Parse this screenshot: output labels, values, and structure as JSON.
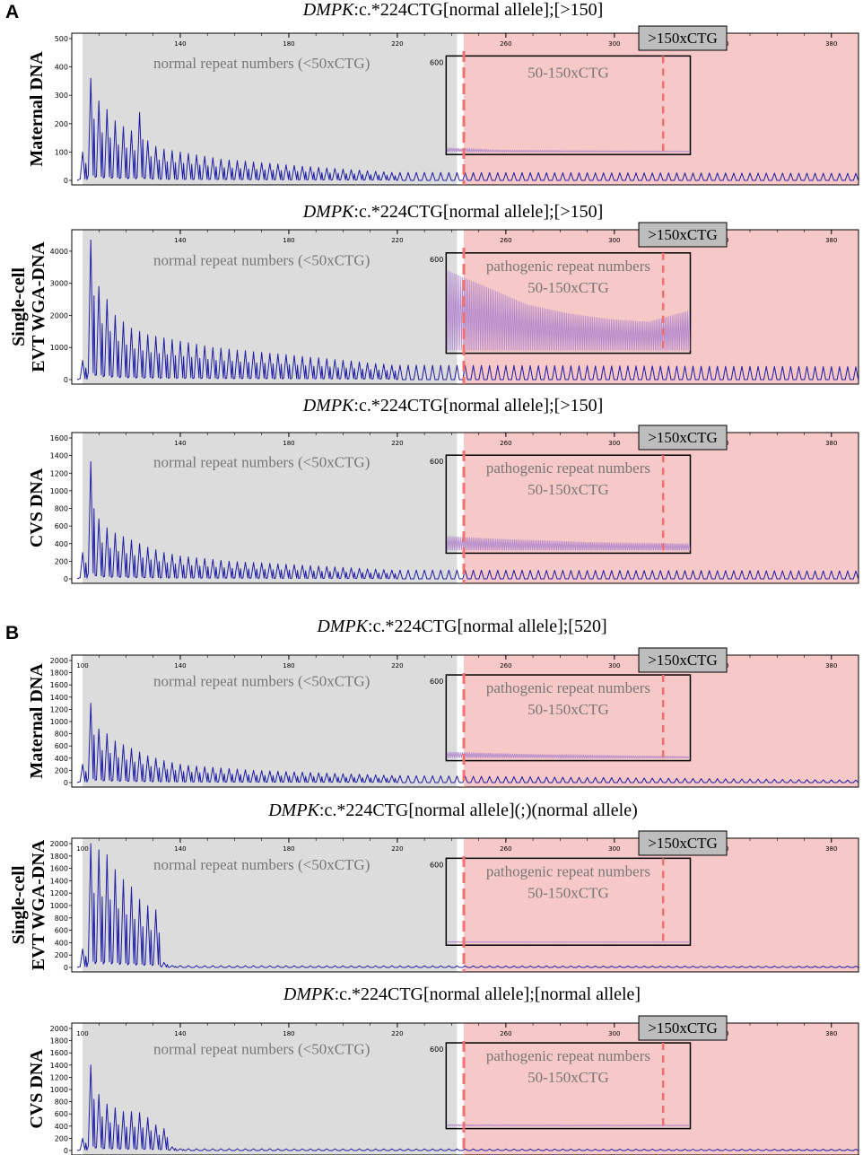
{
  "figure": {
    "section_labels": [
      "A",
      "B"
    ],
    "colors": {
      "trace": "#1c1ca6",
      "normal_zone": "#dcdcdc",
      "expanded_zone": "#f7c8c8",
      "dashed_line": "#f07070",
      "inset_trace": "#b38acd",
      "badge_bg": "#bdbdbd"
    },
    "region_labels": {
      "normal": "normal repeat numbers (<50xCTG)",
      "pathogenic_title": "pathogenic repeat numbers",
      "pathogenic_range": "50-150xCTG",
      "expanded": ">150xCTG",
      "inset_ymax": "600"
    },
    "x_ticks": [
      "140",
      "180",
      "220",
      "260",
      "300",
      "340",
      "380"
    ],
    "x_tick_values": [
      140,
      180,
      220,
      260,
      300,
      340,
      380
    ],
    "x_axis_start_label": "100"
  },
  "chart_data": [
    {
      "type": "line",
      "section": "A",
      "sample": "Maternal DNA",
      "title_gene": "DMPK",
      "title_rest": ":c.*224CTG[normal allele];[>150]",
      "y_ticks": [
        "0",
        "100",
        "200",
        "300",
        "400",
        "500"
      ],
      "ylim": [
        0,
        500
      ],
      "xlim": [
        100,
        390
      ],
      "peak_heights": [
        100,
        360,
        280,
        250,
        210,
        190,
        175,
        240,
        140,
        120,
        110,
        105,
        100,
        95,
        90,
        85,
        80,
        75,
        72,
        70,
        68,
        65,
        62,
        60,
        58,
        55,
        53,
        50,
        48,
        46,
        44,
        42,
        40,
        38,
        36,
        34,
        32,
        30,
        28
      ],
      "expanded_level": 25,
      "show_pathogenic_title": false,
      "inset_profile": [
        150,
        60,
        50,
        40,
        35,
        30
      ]
    },
    {
      "type": "line",
      "section": "A",
      "sample": "Single-cell EVT WGA-DNA",
      "title_gene": "DMPK",
      "title_rest": ":c.*224CTG[normal allele];[>150]",
      "y_ticks": [
        "0",
        "1000",
        "2000",
        "3000",
        "4000"
      ],
      "ylim": [
        0,
        4500
      ],
      "xlim": [
        100,
        390
      ],
      "peak_heights": [
        600,
        4350,
        2900,
        2500,
        2000,
        1800,
        1600,
        1500,
        1400,
        1350,
        1300,
        1250,
        1200,
        1150,
        1100,
        1050,
        1000,
        980,
        950,
        920,
        900,
        870,
        850,
        820,
        800,
        780,
        750,
        720,
        700,
        680,
        650,
        620,
        600,
        580,
        550,
        520,
        500,
        480,
        450
      ],
      "expanded_level": 400,
      "show_pathogenic_title": true,
      "inset_profile": [
        2800,
        2200,
        1600,
        1300,
        1100,
        1000,
        1400
      ]
    },
    {
      "type": "line",
      "section": "A",
      "sample": "CVS DNA",
      "title_gene": "DMPK",
      "title_rest": ":c.*224CTG[normal allele];[>150]",
      "y_ticks": [
        "0",
        "200",
        "400",
        "600",
        "800",
        "1000",
        "1200",
        "1400",
        "1600"
      ],
      "ylim": [
        0,
        1600
      ],
      "xlim": [
        100,
        390
      ],
      "peak_heights": [
        300,
        1330,
        680,
        580,
        520,
        480,
        440,
        400,
        360,
        330,
        300,
        280,
        260,
        250,
        240,
        230,
        220,
        210,
        200,
        195,
        190,
        185,
        180,
        175,
        170,
        165,
        160,
        155,
        150,
        145,
        140,
        135,
        130,
        125,
        120,
        115,
        110,
        105,
        100
      ],
      "expanded_level": 90,
      "show_pathogenic_title": true,
      "inset_profile": [
        520,
        420,
        360,
        300,
        270,
        250
      ]
    },
    {
      "type": "line",
      "section": "B",
      "sample": "Maternal DNA",
      "title_gene": "DMPK",
      "title_rest": ":c.*224CTG[normal allele];[520]",
      "y_ticks": [
        "0",
        "200",
        "400",
        "600",
        "800",
        "1000",
        "1200",
        "1400",
        "1600",
        "1800",
        "2000"
      ],
      "ylim": [
        0,
        2000
      ],
      "xlim": [
        100,
        390
      ],
      "peak_heights": [
        300,
        1300,
        880,
        800,
        680,
        620,
        560,
        500,
        440,
        400,
        360,
        330,
        300,
        280,
        270,
        260,
        250,
        240,
        230,
        220,
        210,
        200,
        195,
        190,
        185,
        180,
        175,
        170,
        165,
        160,
        155,
        150,
        145,
        140,
        135,
        130,
        125,
        120,
        115
      ],
      "expanded_level": 40,
      "show_pathogenic_title": true,
      "inset_profile": [
        260,
        200,
        150,
        110,
        80,
        60
      ]
    },
    {
      "type": "line",
      "section": "B",
      "sample": "Single-cell EVT WGA-DNA",
      "title_gene": "DMPK",
      "title_rest": ":c.*224CTG[normal allele](;)(normal allele)",
      "y_ticks": [
        "0",
        "200",
        "400",
        "600",
        "800",
        "1000",
        "1200",
        "1400",
        "1600",
        "1800",
        "2000"
      ],
      "ylim": [
        0,
        2000
      ],
      "xlim": [
        100,
        390
      ],
      "peak_heights": [
        300,
        2000,
        1900,
        1820,
        1580,
        1420,
        1300,
        1100,
        1000,
        930,
        80,
        30
      ],
      "expanded_level": 20,
      "show_pathogenic_title": true,
      "inset_profile": [
        40,
        35,
        30,
        30,
        30,
        30
      ]
    },
    {
      "type": "line",
      "section": "B",
      "sample": "CVS DNA",
      "title_gene": "DMPK",
      "title_rest": ":c.*224CTG[normal allele];[normal allele]",
      "y_ticks": [
        "0",
        "200",
        "400",
        "600",
        "800",
        "1000",
        "1200",
        "1400",
        "1600",
        "1800",
        "2000"
      ],
      "ylim": [
        0,
        2000
      ],
      "xlim": [
        100,
        390
      ],
      "peak_heights": [
        200,
        1400,
        920,
        760,
        700,
        640,
        640,
        620,
        540,
        420,
        360,
        60,
        30
      ],
      "expanded_level": 20,
      "show_pathogenic_title": true,
      "inset_profile": [
        60,
        50,
        40,
        40,
        40,
        40
      ]
    }
  ]
}
